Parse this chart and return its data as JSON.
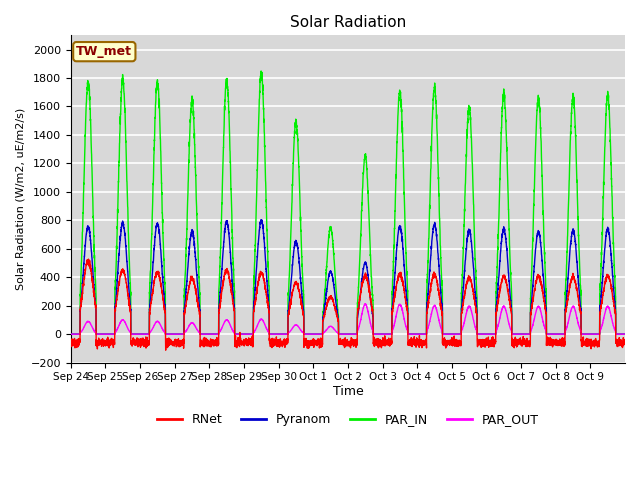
{
  "title": "Solar Radiation",
  "ylabel": "Solar Radiation (W/m2, uE/m2/s)",
  "xlabel": "Time",
  "ylim": [
    -200,
    2100
  ],
  "yticks": [
    -200,
    0,
    200,
    400,
    600,
    800,
    1000,
    1200,
    1400,
    1600,
    1800,
    2000
  ],
  "station_label": "TW_met",
  "legend_labels": [
    "RNet",
    "Pyranom",
    "PAR_IN",
    "PAR_OUT"
  ],
  "colors": [
    "#ff0000",
    "#0000cd",
    "#00ee00",
    "#ff00ff"
  ],
  "bg_color": "#d8d8d8",
  "grid_color": "#ffffff",
  "xtick_labels": [
    "Sep 24",
    "Sep 25",
    "Sep 26",
    "Sep 27",
    "Sep 28",
    "Sep 29",
    "Sep 30",
    "Oct 1",
    "Oct 2",
    "Oct 3",
    "Oct 4",
    "Oct 5",
    "Oct 6",
    "Oct 7",
    "Oct 8",
    "Oct 9"
  ],
  "day_peaks_PAR_IN": [
    1780,
    1790,
    1770,
    1640,
    1780,
    1840,
    1490,
    750,
    1250,
    1710,
    1730,
    1590,
    1690,
    1660,
    1670,
    1680
  ],
  "day_peaks_Pyranom": [
    760,
    780,
    775,
    720,
    790,
    800,
    650,
    440,
    500,
    760,
    770,
    730,
    740,
    720,
    730,
    740
  ],
  "day_peaks_RNet": [
    510,
    450,
    435,
    390,
    450,
    430,
    360,
    260,
    410,
    420,
    415,
    395,
    405,
    405,
    400,
    410
  ],
  "day_peaks_PAR_OUT": [
    90,
    100,
    90,
    80,
    100,
    105,
    65,
    55,
    210,
    210,
    200,
    195,
    195,
    195,
    195,
    195
  ],
  "rnet_night": -60
}
